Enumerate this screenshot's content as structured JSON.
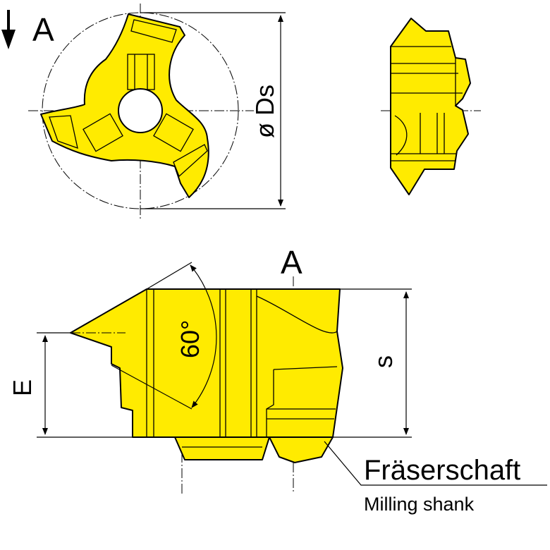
{
  "view_marker": {
    "arrow_icon": "down-arrow-icon",
    "label": "A"
  },
  "top_view": {
    "diameter_label": "ø Ds"
  },
  "front_view": {
    "view_label": "A",
    "angle_label": "60°",
    "height_label": "E",
    "width_label": "s"
  },
  "callout": {
    "title_de": "Fräserschaft",
    "title_en": "Milling shank"
  },
  "colors": {
    "part_fill": "#ffeb00",
    "line": "#000000",
    "background": "#ffffff"
  }
}
